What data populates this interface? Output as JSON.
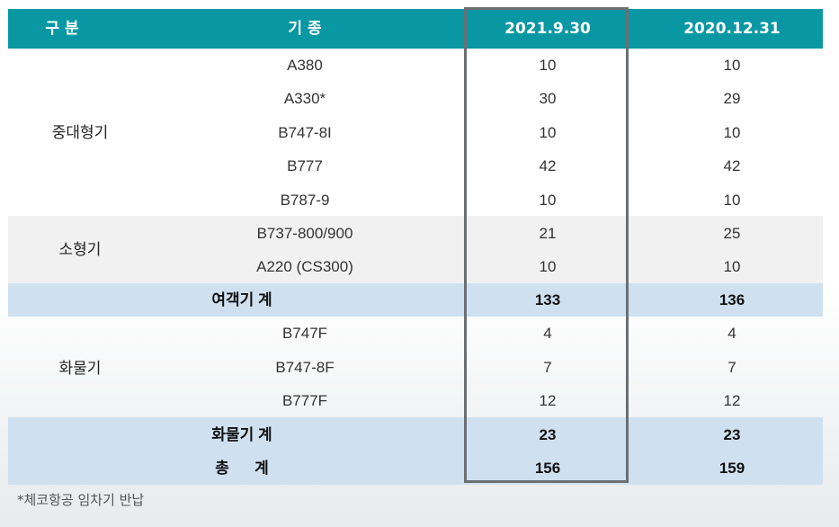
{
  "header": [
    "구   분",
    "기 종",
    "2021.9.30",
    "2020.12.31"
  ],
  "colors": {
    "header_bg": "#0a97a4",
    "subtotal_bg": "#cfe1f1",
    "alt_bg": "#f1f1f1",
    "highlight_border": "#6b6f72"
  },
  "groups": {
    "large": "중대형기",
    "small": "소형기",
    "cargo": "화물기"
  },
  "rows": [
    {
      "model": "A380",
      "v2021": "10",
      "v2020": "10"
    },
    {
      "model": "A330*",
      "v2021": "30",
      "v2020": "29"
    },
    {
      "model": "B747-8I",
      "v2021": "10",
      "v2020": "10"
    },
    {
      "model": "B777",
      "v2021": "42",
      "v2020": "42"
    },
    {
      "model": "B787-9",
      "v2021": "10",
      "v2020": "10"
    },
    {
      "model": "B737-800/900",
      "v2021": "21",
      "v2020": "25"
    },
    {
      "model": "A220 (CS300)",
      "v2021": "10",
      "v2020": "10"
    },
    {
      "model": "여객기 계",
      "v2021": "133",
      "v2020": "136"
    },
    {
      "model": "B747F",
      "v2021": "4",
      "v2020": "4"
    },
    {
      "model": "B747-8F",
      "v2021": "7",
      "v2020": "7"
    },
    {
      "model": "B777F",
      "v2021": "12",
      "v2020": "12"
    },
    {
      "model": "화물기 계",
      "v2021": "23",
      "v2020": "23"
    },
    {
      "model": "총      계",
      "v2021": "156",
      "v2020": "159"
    }
  ],
  "footnote": "*체코항공 임차기 반납"
}
